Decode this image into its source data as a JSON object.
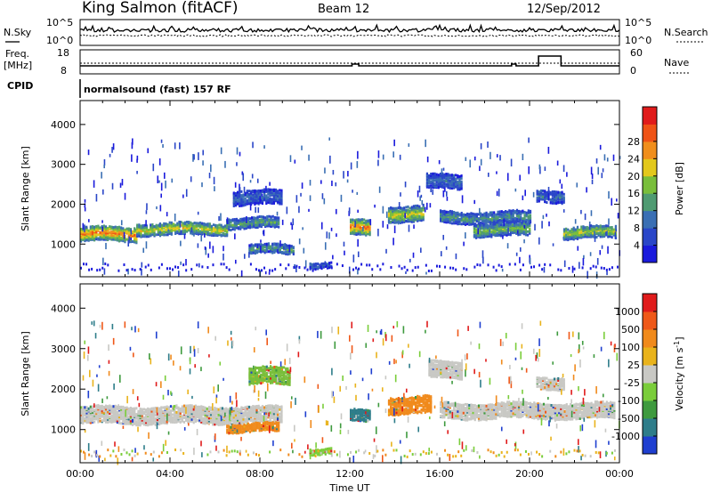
{
  "header": {
    "station": "King Salmon (fitACF)",
    "beam": "Beam 12",
    "date": "12/Sep/2012"
  },
  "noise_panel": {
    "left_label": "N.Sky",
    "right_label": "N.Search",
    "left_ticks": [
      "10^5",
      "10^0"
    ],
    "right_ticks": [
      "10^5",
      "10^0"
    ]
  },
  "freq_panel": {
    "left_label_1": "Freq.",
    "left_label_2": "[MHz]",
    "right_label": "Nave",
    "left_ticks": [
      "18",
      "8"
    ],
    "right_ticks": [
      "60",
      "0"
    ]
  },
  "cpid_panel": {
    "label": "CPID",
    "text": "normalsound (fast) 157 RF"
  },
  "chart_data": [
    {
      "type": "heatmap",
      "name": "power",
      "ylabel": "Slant Range [km]",
      "xlabel": "",
      "x_ticks": [
        "00:00",
        "04:00",
        "08:00",
        "12:00",
        "16:00",
        "20:00",
        "00:00"
      ],
      "x_range_hours": [
        0,
        24
      ],
      "y_ticks": [
        "1000",
        "2000",
        "3000",
        "4000"
      ],
      "y_tick_values": [
        1000,
        2000,
        3000,
        4000
      ],
      "ylim": [
        180,
        4600
      ],
      "colorbar": {
        "label": "Power [dB]",
        "ticks": [
          "4",
          "8",
          "12",
          "16",
          "20",
          "24",
          "28"
        ],
        "range": [
          0,
          30
        ],
        "colors": [
          "#1a1adc",
          "#2a46c8",
          "#3a6fb4",
          "#4f9b72",
          "#79be3b",
          "#e3c81c",
          "#f08e1c",
          "#ef5316",
          "#e01b1b"
        ]
      },
      "bands": [
        {
          "x0": 0.0,
          "x1": 2.5,
          "y_center": 1290,
          "width": 360,
          "level": 20
        },
        {
          "x0": 2.5,
          "x1": 6.5,
          "y_center": 1420,
          "width": 300,
          "level": 15
        },
        {
          "x0": 6.5,
          "x1": 8.8,
          "y_center": 1560,
          "width": 250,
          "level": 10
        },
        {
          "x0": 6.8,
          "x1": 9.0,
          "y_center": 2200,
          "width": 350,
          "level": 5
        },
        {
          "x0": 7.5,
          "x1": 9.5,
          "y_center": 900,
          "width": 220,
          "level": 10
        },
        {
          "x0": 10.2,
          "x1": 11.2,
          "y_center": 520,
          "width": 150,
          "level": 6
        },
        {
          "x0": 12.0,
          "x1": 12.9,
          "y_center": 1440,
          "width": 380,
          "level": 20
        },
        {
          "x0": 13.7,
          "x1": 15.3,
          "y_center": 1800,
          "width": 380,
          "level": 15
        },
        {
          "x0": 15.4,
          "x1": 17.0,
          "y_center": 2600,
          "width": 350,
          "level": 6
        },
        {
          "x0": 16.0,
          "x1": 20.0,
          "y_center": 1700,
          "width": 280,
          "level": 9
        },
        {
          "x0": 17.5,
          "x1": 20.0,
          "y_center": 1400,
          "width": 320,
          "level": 12
        },
        {
          "x0": 20.3,
          "x1": 21.5,
          "y_center": 2250,
          "width": 300,
          "level": 6
        },
        {
          "x0": 21.5,
          "x1": 23.8,
          "y_center": 1330,
          "width": 300,
          "level": 14
        }
      ]
    },
    {
      "type": "heatmap",
      "name": "velocity",
      "ylabel": "Slant Range [km]",
      "xlabel": "Time UT",
      "x_ticks": [
        "00:00",
        "04:00",
        "08:00",
        "12:00",
        "16:00",
        "20:00",
        "00:00"
      ],
      "x_range_hours": [
        0,
        24
      ],
      "y_ticks": [
        "1000",
        "2000",
        "3000",
        "4000"
      ],
      "y_tick_values": [
        1000,
        2000,
        3000,
        4000
      ],
      "ylim": [
        180,
        4600
      ],
      "colorbar": {
        "label": "Velocity [m s^-1]",
        "ticks": [
          "1000",
          "500",
          "100",
          "25",
          "-25",
          "-100",
          "-500",
          "-1000"
        ],
        "colors": [
          "#1f3fd0",
          "#2e7d8a",
          "#3e9a3e",
          "#7acd3a",
          "#c8c8c4",
          "#e9b31c",
          "#f08a1c",
          "#ef5818",
          "#e01b1b"
        ]
      },
      "bands": [
        {
          "x0": 0.0,
          "x1": 9.0,
          "y_center": 1400,
          "width": 420,
          "color": "#c8c8c4"
        },
        {
          "x0": 6.5,
          "x1": 8.8,
          "y_center": 1080,
          "width": 200,
          "color": "#f08a1c"
        },
        {
          "x0": 7.5,
          "x1": 9.3,
          "y_center": 2350,
          "width": 400,
          "color": "#79be3b"
        },
        {
          "x0": 10.2,
          "x1": 11.2,
          "y_center": 520,
          "width": 150,
          "color": "#7acd3a"
        },
        {
          "x0": 12.0,
          "x1": 12.9,
          "y_center": 1380,
          "width": 300,
          "color": "#2e7d8a"
        },
        {
          "x0": 13.7,
          "x1": 15.6,
          "y_center": 1650,
          "width": 420,
          "color": "#f08a1c"
        },
        {
          "x0": 15.5,
          "x1": 17.0,
          "y_center": 2500,
          "width": 400,
          "color": "#c8c8c4"
        },
        {
          "x0": 16.0,
          "x1": 23.8,
          "y_center": 1500,
          "width": 380,
          "color": "#c8c8c4"
        },
        {
          "x0": 20.3,
          "x1": 21.5,
          "y_center": 2200,
          "width": 300,
          "color": "#c8c8c4"
        }
      ]
    }
  ]
}
